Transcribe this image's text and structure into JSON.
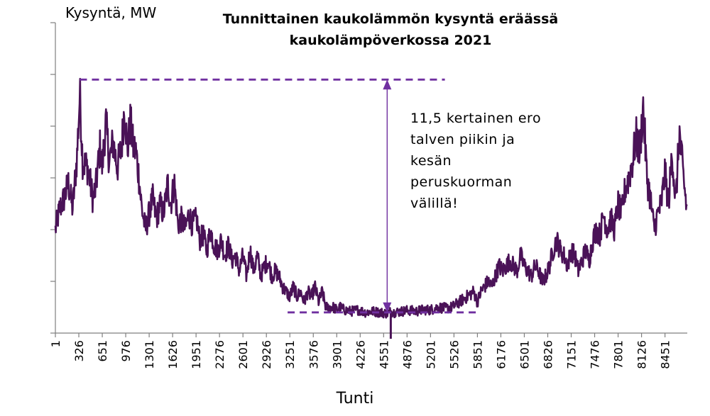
{
  "chart_data": {
    "type": "line",
    "title_lines": [
      "Tunnittainen kaukolämmön kysyntä eräässä",
      "kaukolämpöverkossa 2021"
    ],
    "ylabel": "Kysyntä, MW",
    "xlabel": "Tunti",
    "x_ticks": [
      "1",
      "326",
      "651",
      "976",
      "1301",
      "1626",
      "1951",
      "2276",
      "2601",
      "2926",
      "3251",
      "3576",
      "3901",
      "4226",
      "4551",
      "4876",
      "5201",
      "5526",
      "5851",
      "6176",
      "6501",
      "6826",
      "7151",
      "7476",
      "7801",
      "8126",
      "8451"
    ],
    "xlim": [
      1,
      8760
    ],
    "ylim": [
      0,
      6
    ],
    "y_tick_count": 6,
    "grid": false,
    "series": [
      {
        "color": "#4a1257",
        "points": [
          [
            1,
            2.0
          ],
          [
            60,
            2.4
          ],
          [
            120,
            2.6
          ],
          [
            180,
            2.9
          ],
          [
            240,
            2.4
          ],
          [
            300,
            3.4
          ],
          [
            340,
            4.6
          ],
          [
            380,
            3.3
          ],
          [
            450,
            3.2
          ],
          [
            520,
            2.6
          ],
          [
            560,
            2.8
          ],
          [
            620,
            3.6
          ],
          [
            650,
            3.2
          ],
          [
            700,
            4.1
          ],
          [
            750,
            3.3
          ],
          [
            800,
            3.7
          ],
          [
            860,
            3.2
          ],
          [
            920,
            3.6
          ],
          [
            960,
            4.4
          ],
          [
            1000,
            3.5
          ],
          [
            1040,
            4.1
          ],
          [
            1080,
            3.6
          ],
          [
            1120,
            3.5
          ],
          [
            1160,
            3.0
          ],
          [
            1200,
            2.4
          ],
          [
            1250,
            2.0
          ],
          [
            1300,
            2.3
          ],
          [
            1350,
            2.6
          ],
          [
            1400,
            2.2
          ],
          [
            1450,
            2.5
          ],
          [
            1500,
            2.3
          ],
          [
            1560,
            2.9
          ],
          [
            1600,
            2.5
          ],
          [
            1650,
            2.9
          ],
          [
            1700,
            2.1
          ],
          [
            1750,
            2.2
          ],
          [
            1800,
            2.0
          ],
          [
            1850,
            2.3
          ],
          [
            1900,
            2.1
          ],
          [
            1960,
            2.2
          ],
          [
            2000,
            1.8
          ],
          [
            2050,
            1.9
          ],
          [
            2100,
            1.6
          ],
          [
            2150,
            2.0
          ],
          [
            2200,
            1.7
          ],
          [
            2250,
            1.6
          ],
          [
            2300,
            1.8
          ],
          [
            2350,
            1.5
          ],
          [
            2400,
            1.7
          ],
          [
            2450,
            1.4
          ],
          [
            2500,
            1.5
          ],
          [
            2550,
            1.2
          ],
          [
            2600,
            1.5
          ],
          [
            2650,
            1.1
          ],
          [
            2700,
            1.6
          ],
          [
            2750,
            1.2
          ],
          [
            2800,
            1.5
          ],
          [
            2850,
            1.1
          ],
          [
            2900,
            1.3
          ],
          [
            2950,
            1.4
          ],
          [
            3000,
            1.1
          ],
          [
            3050,
            1.2
          ],
          [
            3100,
            1.1
          ],
          [
            3150,
            0.9
          ],
          [
            3200,
            0.8
          ],
          [
            3250,
            0.7
          ],
          [
            3300,
            0.9
          ],
          [
            3350,
            0.7
          ],
          [
            3400,
            0.8
          ],
          [
            3450,
            0.6
          ],
          [
            3500,
            0.8
          ],
          [
            3550,
            0.7
          ],
          [
            3600,
            0.9
          ],
          [
            3650,
            0.6
          ],
          [
            3700,
            0.8
          ],
          [
            3750,
            0.5
          ],
          [
            3800,
            0.5
          ],
          [
            3850,
            0.5
          ],
          [
            3900,
            0.45
          ],
          [
            3950,
            0.5
          ],
          [
            4000,
            0.45
          ],
          [
            4100,
            0.42
          ],
          [
            4200,
            0.45
          ],
          [
            4300,
            0.4
          ],
          [
            4400,
            0.42
          ],
          [
            4500,
            0.4
          ],
          [
            4600,
            0.38
          ],
          [
            4650,
            0.42
          ],
          [
            4700,
            0.4
          ],
          [
            4800,
            0.42
          ],
          [
            4900,
            0.44
          ],
          [
            5000,
            0.42
          ],
          [
            5100,
            0.45
          ],
          [
            5200,
            0.45
          ],
          [
            5300,
            0.5
          ],
          [
            5400,
            0.48
          ],
          [
            5500,
            0.5
          ],
          [
            5600,
            0.6
          ],
          [
            5700,
            0.7
          ],
          [
            5800,
            0.8
          ],
          [
            5850,
            0.6
          ],
          [
            5900,
            0.8
          ],
          [
            5950,
            0.9
          ],
          [
            6000,
            1.0
          ],
          [
            6050,
            0.9
          ],
          [
            6100,
            1.1
          ],
          [
            6150,
            1.3
          ],
          [
            6200,
            1.2
          ],
          [
            6300,
            1.4
          ],
          [
            6400,
            1.2
          ],
          [
            6450,
            1.5
          ],
          [
            6500,
            1.3
          ],
          [
            6550,
            1.2
          ],
          [
            6600,
            1.1
          ],
          [
            6650,
            1.3
          ],
          [
            6700,
            1.2
          ],
          [
            6750,
            1.0
          ],
          [
            6800,
            1.1
          ],
          [
            6850,
            1.3
          ],
          [
            6900,
            1.6
          ],
          [
            6950,
            1.8
          ],
          [
            7000,
            1.6
          ],
          [
            7050,
            1.5
          ],
          [
            7100,
            1.3
          ],
          [
            7150,
            1.6
          ],
          [
            7200,
            1.5
          ],
          [
            7250,
            1.2
          ],
          [
            7300,
            1.4
          ],
          [
            7350,
            1.6
          ],
          [
            7400,
            1.4
          ],
          [
            7450,
            1.8
          ],
          [
            7500,
            2.0
          ],
          [
            7550,
            1.9
          ],
          [
            7600,
            2.3
          ],
          [
            7650,
            2.0
          ],
          [
            7700,
            2.2
          ],
          [
            7750,
            2.0
          ],
          [
            7800,
            2.5
          ],
          [
            7850,
            2.3
          ],
          [
            7900,
            2.8
          ],
          [
            7950,
            3.0
          ],
          [
            8000,
            3.3
          ],
          [
            8050,
            3.8
          ],
          [
            8100,
            3.5
          ],
          [
            8150,
            4.4
          ],
          [
            8200,
            3.0
          ],
          [
            8250,
            2.6
          ],
          [
            8300,
            2.0
          ],
          [
            8350,
            2.3
          ],
          [
            8400,
            2.5
          ],
          [
            8450,
            3.1
          ],
          [
            8500,
            2.5
          ],
          [
            8550,
            3.5
          ],
          [
            8600,
            2.5
          ],
          [
            8650,
            3.9
          ],
          [
            8700,
            3.1
          ],
          [
            8760,
            2.3
          ]
        ]
      }
    ],
    "reference_lines": {
      "peak_level": 4.9,
      "base_level": 0.4,
      "peak_line_x": [
        340,
        5400
      ],
      "base_line_x": [
        3220,
        5850
      ],
      "arrow_x": 4600,
      "color": "#7030a0"
    },
    "annotation_lines": [
      "11,5 kertainen ero",
      "talven piikin ja",
      "kesän",
      "peruskuorman",
      "välillä!"
    ]
  }
}
